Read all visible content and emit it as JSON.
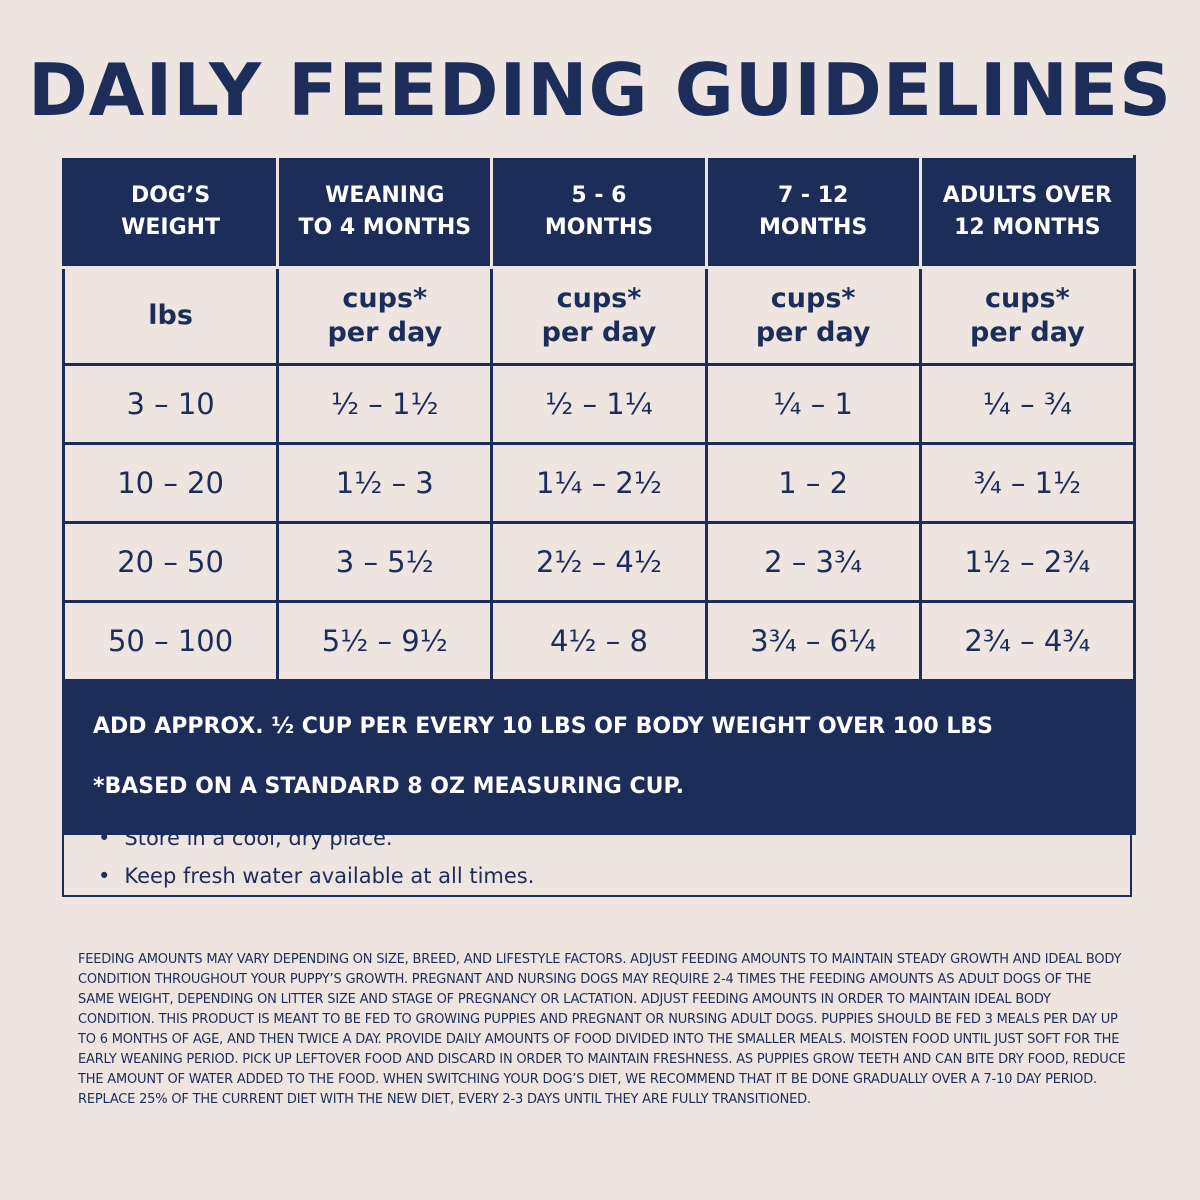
{
  "header": {
    "title": "DAILY FEEDING GUIDELINES"
  },
  "table": {
    "columns": [
      "DOG’S\nWEIGHT",
      "WEANING\nTO 4 MONTHS",
      "5 - 6\nMONTHS",
      "7 - 12\nMONTHS",
      "ADULTS OVER\n12 MONTHS"
    ],
    "units": [
      "lbs",
      "cups*\nper day",
      "cups*\nper day",
      "cups*\nper day",
      "cups*\nper day"
    ],
    "rows": [
      [
        "3 – 10",
        "½ – 1½",
        "½ – 1¼",
        "¼ – 1",
        "¼ – ¾"
      ],
      [
        "10 – 20",
        "1½ – 3",
        "1¼ – 2½",
        "1 – 2",
        "¾ – 1½"
      ],
      [
        "20 – 50",
        "3 – 5½",
        "2½ – 4½",
        "2 – 3¾",
        "1½ – 2¾"
      ],
      [
        "50 – 100",
        "5½ – 9½",
        "4½ – 8",
        "3¾ – 6¼",
        "2¾ – 4¾"
      ]
    ],
    "footer": [
      "ADD APPROX. ½ CUP PER EVERY 10 LBS OF BODY WEIGHT OVER 100 LBS",
      "*BASED ON A STANDARD 8 OZ MEASURING CUP."
    ]
  },
  "notes": [
    "Store in a cool, dry place.",
    "Keep fresh water available at all times."
  ],
  "disclaimer": "Feeding amounts may vary depending on size, breed, and lifestyle factors. Adjust feeding amounts to maintain steady growth and ideal body condition throughout your puppy’s growth. Pregnant and nursing dogs may require 2-4 times the feeding amounts as adult dogs of the same weight, depending on litter size and stage of pregnancy or lactation. Adjust feeding amounts in order to maintain ideal body condition. This product is meant to be fed to growing puppies and pregnant or nursing adult dogs. Puppies should be fed 3 meals per day up to 6 months of age, and then twice a day. Provide daily amounts of food divided into the smaller meals. Moisten food until just soft for the early weaning period. Pick up leftover food and discard in order to maintain freshness. As puppies grow teeth and can bite dry food, reduce the amount of water added to the food. When switching your dog’s diet, we recommend that it be done gradually over a 7-10 day period. Replace 25% of the current diet with the new diet, every 2-3 days until they are fully transitioned."
}
